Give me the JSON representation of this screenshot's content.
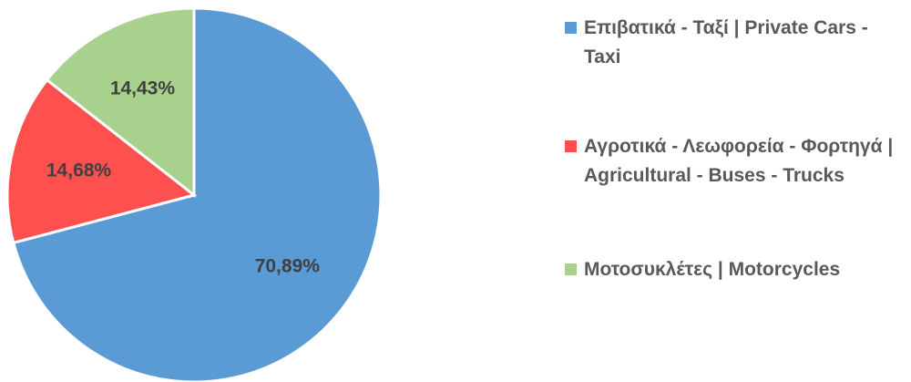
{
  "chart_data": {
    "type": "pie",
    "categories": [
      "Επιβατικά - Ταξί | Private Cars - Taxi",
      "Αγροτικά - Λεωφορεία - Φορτηγά | Agricultural - Buses - Trucks",
      "Μοτοσυκλέτες | Motorcycles"
    ],
    "values": [
      70.89,
      14.68,
      14.43
    ],
    "value_labels": [
      "70,89%",
      "14,68%",
      "14,43%"
    ],
    "colors": [
      "#5b9bd5",
      "#ff5050",
      "#a9d18e"
    ],
    "legend": "right"
  }
}
